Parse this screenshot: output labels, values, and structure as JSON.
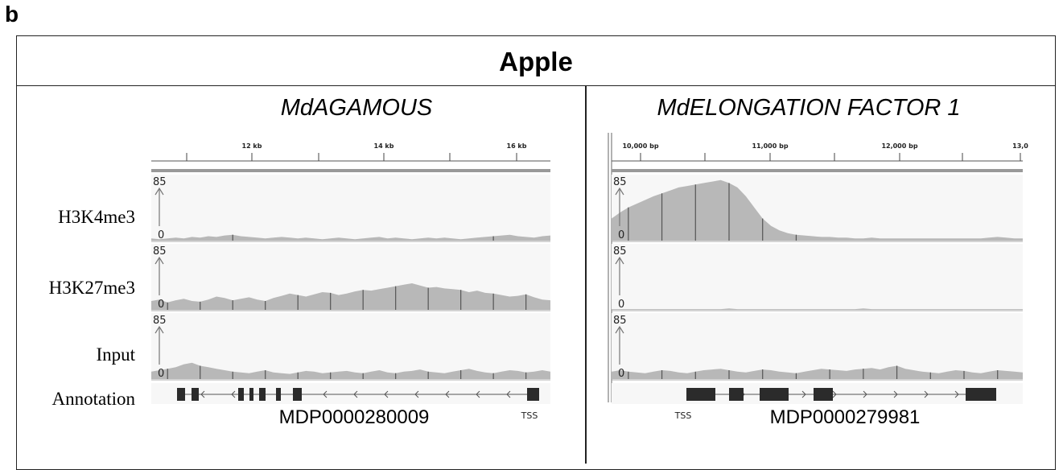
{
  "panel_letter": "b",
  "title": "Apple",
  "track_labels": [
    "H3K4me3",
    "H3K27me3",
    "Input",
    "Annotation"
  ],
  "chart_data": [
    {
      "type": "area",
      "gene": "MdAGAMOUS",
      "gene_id": "MDP0000280009",
      "xaxis_ticks": [
        "12 kb",
        "14 kb",
        "16 kb"
      ],
      "tss_label": "TSS",
      "tss_side": "right",
      "strand": "-",
      "tracks": [
        {
          "name": "H3K4me3",
          "ylim": [
            0,
            85
          ],
          "scale_max": "85",
          "scale_min": "0",
          "signal": [
            3,
            2,
            3,
            4,
            3,
            5,
            4,
            6,
            5,
            7,
            8,
            6,
            5,
            4,
            3,
            4,
            5,
            4,
            3,
            4,
            3,
            2,
            3,
            4,
            3,
            2,
            3,
            4,
            5,
            3,
            4,
            3,
            2,
            3,
            4,
            3,
            4,
            3,
            2,
            3,
            4,
            5,
            6,
            7,
            8,
            6,
            5,
            4,
            6,
            7
          ]
        },
        {
          "name": "H3K27me3",
          "ylim": [
            0,
            85
          ],
          "scale_max": "85",
          "scale_min": "0",
          "signal": [
            12,
            14,
            10,
            13,
            15,
            12,
            11,
            14,
            18,
            16,
            13,
            15,
            17,
            14,
            12,
            16,
            19,
            22,
            20,
            18,
            21,
            24,
            23,
            20,
            22,
            25,
            27,
            26,
            28,
            30,
            32,
            34,
            36,
            33,
            30,
            31,
            29,
            28,
            27,
            24,
            26,
            23,
            22,
            20,
            18,
            19,
            21,
            17,
            14,
            13
          ]
        },
        {
          "name": "Input",
          "ylim": [
            0,
            85
          ],
          "scale_max": "85",
          "scale_min": "0",
          "signal": [
            10,
            12,
            14,
            16,
            20,
            22,
            18,
            16,
            14,
            12,
            10,
            9,
            8,
            10,
            12,
            9,
            8,
            7,
            9,
            11,
            10,
            8,
            9,
            10,
            11,
            9,
            8,
            10,
            12,
            9,
            8,
            10,
            11,
            13,
            10,
            9,
            8,
            10,
            12,
            14,
            11,
            9,
            8,
            10,
            12,
            11,
            9,
            10,
            12,
            10
          ]
        }
      ]
    },
    {
      "type": "area",
      "gene": "MdELONGATION FACTOR 1",
      "gene_id": "MDP0000279981",
      "xaxis_ticks": [
        "10,000 bp",
        "11,000 bp",
        "12,000 bp",
        "13,0"
      ],
      "tss_label": "TSS",
      "tss_side": "left",
      "strand": "+",
      "tracks": [
        {
          "name": "H3K4me3",
          "ylim": [
            0,
            85
          ],
          "scale_max": "85",
          "scale_min": "0",
          "signal": [
            30,
            38,
            45,
            50,
            55,
            60,
            64,
            68,
            72,
            74,
            76,
            78,
            80,
            82,
            78,
            72,
            60,
            45,
            30,
            20,
            14,
            10,
            8,
            7,
            6,
            5,
            5,
            4,
            4,
            3,
            3,
            4,
            3,
            3,
            3,
            3,
            3,
            3,
            3,
            3,
            3,
            3,
            3,
            3,
            3,
            4,
            5,
            4,
            3,
            3
          ]
        },
        {
          "name": "H3K27me3",
          "ylim": [
            0,
            85
          ],
          "scale_max": "85",
          "scale_min": "0",
          "signal": [
            1,
            1,
            1,
            1,
            1,
            1,
            1,
            1,
            1,
            1,
            1,
            1,
            1,
            1,
            2,
            1,
            1,
            1,
            1,
            1,
            1,
            1,
            1,
            1,
            1,
            1,
            1,
            1,
            1,
            1,
            2,
            1,
            1,
            1,
            1,
            1,
            1,
            1,
            1,
            1,
            1,
            1,
            1,
            1,
            1,
            1,
            1,
            1,
            1,
            1
          ]
        },
        {
          "name": "Input",
          "ylim": [
            0,
            85
          ],
          "scale_max": "85",
          "scale_min": "0",
          "signal": [
            10,
            12,
            10,
            9,
            8,
            10,
            12,
            11,
            9,
            8,
            10,
            12,
            13,
            14,
            12,
            10,
            9,
            11,
            13,
            12,
            10,
            9,
            8,
            10,
            12,
            14,
            13,
            12,
            11,
            13,
            14,
            15,
            13,
            16,
            18,
            14,
            12,
            10,
            9,
            8,
            10,
            12,
            11,
            9,
            8,
            10,
            12,
            11,
            10,
            9
          ]
        }
      ]
    }
  ]
}
